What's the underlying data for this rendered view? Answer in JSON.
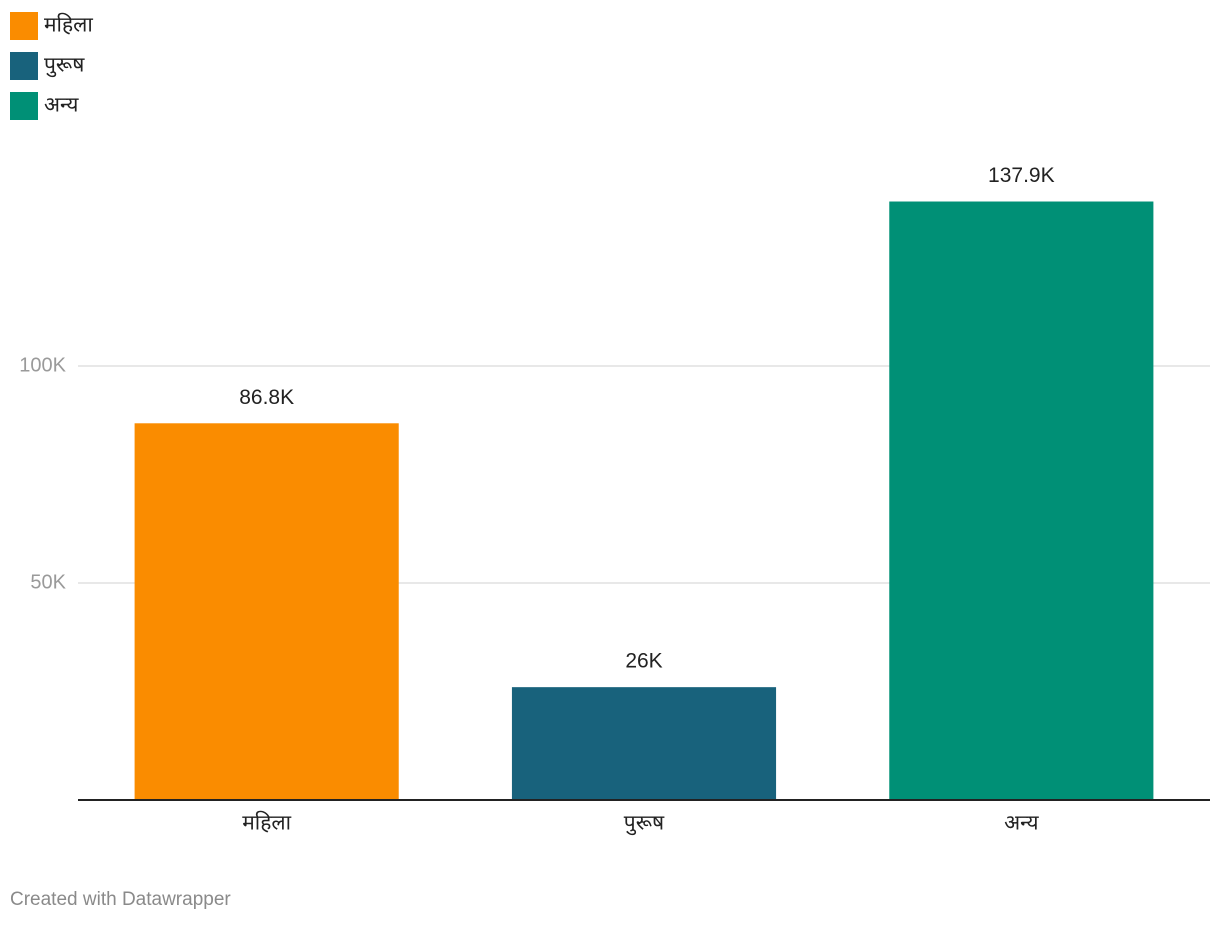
{
  "chart_data": {
    "type": "bar",
    "categories": [
      "महिला",
      "पुरूष",
      "अन्य"
    ],
    "values": [
      86800,
      26000,
      137900
    ],
    "value_labels": [
      "86.8K",
      "26K",
      "137.9K"
    ],
    "colors": [
      "#fa8c00",
      "#18627c",
      "#009076"
    ],
    "ylim": [
      0,
      140000
    ],
    "yticks": [
      {
        "value": 50000,
        "label": "50K"
      },
      {
        "value": 100000,
        "label": "100K"
      }
    ],
    "grid": true,
    "legend": "top-left",
    "credit": "Created with Datawrapper"
  }
}
